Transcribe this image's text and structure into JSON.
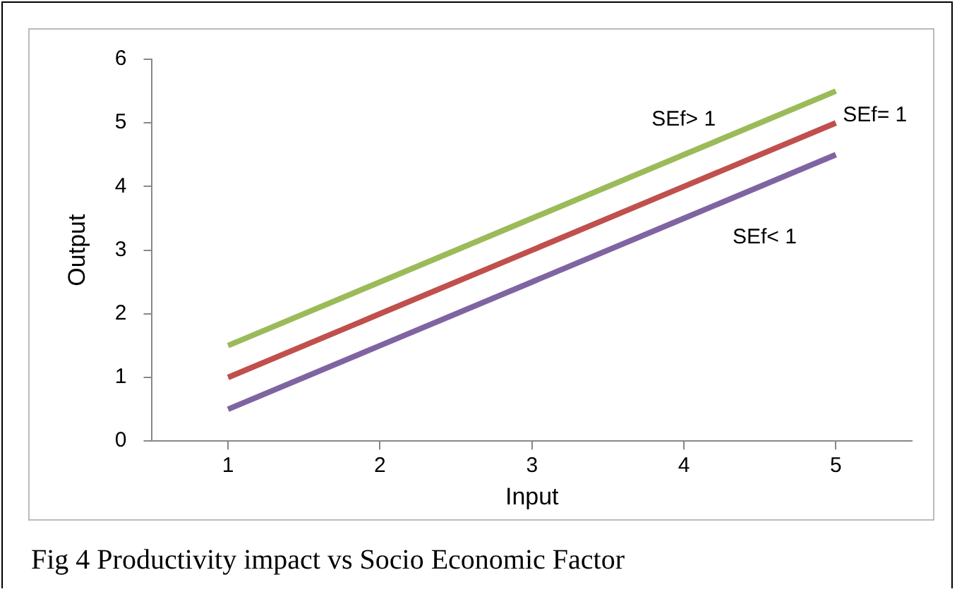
{
  "chart_data": {
    "type": "line",
    "xlabel": "Input",
    "ylabel": "Output",
    "x": [
      1,
      2,
      3,
      4,
      5
    ],
    "xlim": [
      0.5,
      5.5
    ],
    "xticks": [
      1,
      2,
      3,
      4,
      5
    ],
    "ylim": [
      0,
      6
    ],
    "yticks": [
      0,
      1,
      2,
      3,
      4,
      5,
      6
    ],
    "marker": "none",
    "line_style": "solid",
    "series": [
      {
        "name": "SEf> 1",
        "color": "#9bbb59",
        "values": [
          1.5,
          2.5,
          3.5,
          4.5,
          5.5
        ]
      },
      {
        "name": "SEf= 1",
        "color": "#c0504d",
        "values": [
          1,
          2,
          3,
          4,
          5
        ]
      },
      {
        "name": "SEf< 1",
        "color": "#8064a2",
        "values": [
          0.5,
          1.5,
          2.5,
          3.5,
          4.5
        ]
      }
    ],
    "annotations": [
      "Fig 4 Productivity impact vs Socio Economic Factor"
    ]
  }
}
